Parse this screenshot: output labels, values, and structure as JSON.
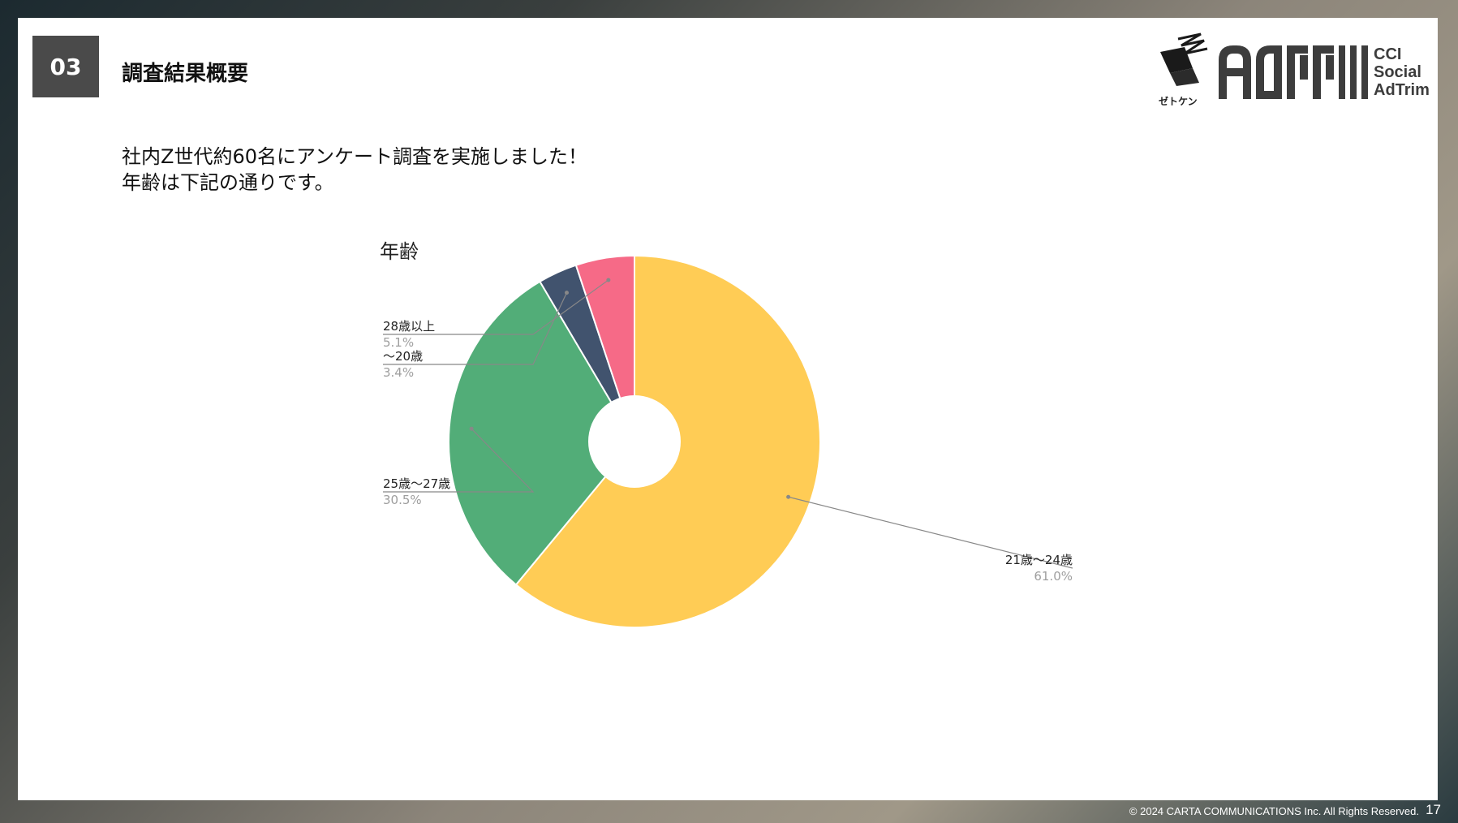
{
  "header": {
    "section_number": "03",
    "section_title": "調査結果概要"
  },
  "logos": {
    "zetoken_label": "ゼトケン",
    "cci_lines": [
      "CCI",
      "Social",
      "AdTrim"
    ]
  },
  "intro": {
    "line1": "社内Z世代約60名にアンケート調査を実施しました！",
    "line2": "年齢は下記の通りです。"
  },
  "chart_data": {
    "type": "pie",
    "title": "年齢",
    "slices": [
      {
        "label": "21歳〜24歳",
        "value": 61.0,
        "display": "61.0%",
        "color": "#FFCC55"
      },
      {
        "label": "25歳〜27歳",
        "value": 30.5,
        "display": "30.5%",
        "color": "#52AD78"
      },
      {
        "label": "〜20歳",
        "value": 3.4,
        "display": "3.4%",
        "color": "#41536E"
      },
      {
        "label": "28歳以上",
        "value": 5.1,
        "display": "5.1%",
        "color": "#F66A87"
      }
    ],
    "donut_hole": true,
    "legend": "callout-labels"
  },
  "footer": {
    "copyright": "© 2024 CARTA COMMUNICATIONS Inc.  All Rights Reserved.",
    "page": "17"
  }
}
